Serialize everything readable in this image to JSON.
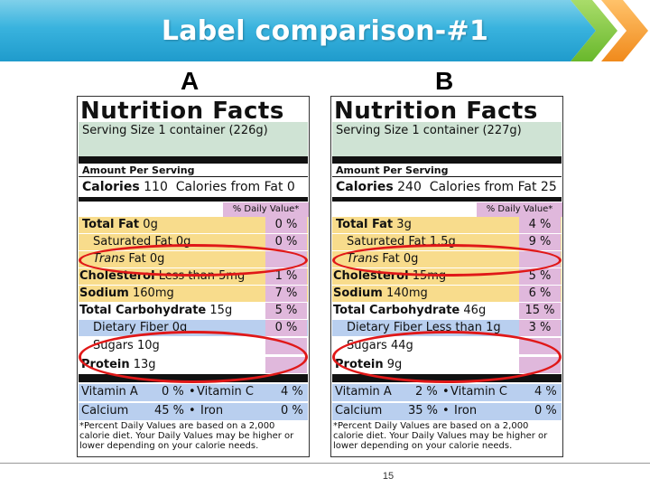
{
  "slide": {
    "title": "Label comparison-#1",
    "page_number": "15"
  },
  "labels": [
    {
      "letter": "A",
      "heading": "Nutrition Facts",
      "serving": "Serving Size 1 container (226g)",
      "amount_per_serving": "Amount Per Serving",
      "calories_label": "Calories",
      "calories_value": "110",
      "calories_from_fat": "Calories from Fat",
      "calories_from_fat_value": "0",
      "dv_header": "% Daily Value*",
      "nutrients": [
        {
          "name": "Total Fat",
          "amount": "0g",
          "dv": "0 %"
        },
        {
          "name": "Saturated Fat",
          "amount": "0g",
          "dv": "0 %"
        },
        {
          "name": "Trans",
          "name2": "Fat",
          "amount": "0g",
          "dv": ""
        },
        {
          "name": "Cholesterol",
          "amount": "Less than 5mg",
          "dv": "1 %"
        },
        {
          "name": "Sodium",
          "amount": "160mg",
          "dv": "7 %"
        },
        {
          "name": "Total Carbohydrate",
          "amount": "15g",
          "dv": "5 %"
        },
        {
          "name": "Dietary Fiber",
          "amount": "0g",
          "dv": "0 %"
        },
        {
          "name": "Sugars",
          "amount": "10g",
          "dv": ""
        },
        {
          "name": "Protein",
          "amount": "13g",
          "dv": ""
        }
      ],
      "vitamin_a": "Vitamin A",
      "vitamin_a_dv": "0 %",
      "vitamin_c": "Vitamin C",
      "vitamin_c_dv": "4 %",
      "calcium": "Calcium",
      "calcium_dv": "45 %",
      "iron": "Iron",
      "iron_dv": "0 %",
      "footnote": "*Percent Daily Values are based on a 2,000 calorie diet. Your Daily Values may be higher or lower depending on your calorie needs."
    },
    {
      "letter": "B",
      "heading": "Nutrition Facts",
      "serving": "Serving Size 1 container (227g)",
      "amount_per_serving": "Amount Per Serving",
      "calories_label": "Calories",
      "calories_value": "240",
      "calories_from_fat": "Calories from Fat",
      "calories_from_fat_value": "25",
      "dv_header": "% Daily Value*",
      "nutrients": [
        {
          "name": "Total Fat",
          "amount": "3g",
          "dv": "4 %"
        },
        {
          "name": "Saturated Fat",
          "amount": "1.5g",
          "dv": "9 %"
        },
        {
          "name": "Trans",
          "name2": "Fat",
          "amount": "0g",
          "dv": ""
        },
        {
          "name": "Cholesterol",
          "amount": "15mg",
          "dv": "5 %"
        },
        {
          "name": "Sodium",
          "amount": "140mg",
          "dv": "6 %"
        },
        {
          "name": "Total Carbohydrate",
          "amount": "46g",
          "dv": "15 %"
        },
        {
          "name": "Dietary Fiber",
          "amount": "Less than 1g",
          "dv": "3 %"
        },
        {
          "name": "Sugars",
          "amount": "44g",
          "dv": ""
        },
        {
          "name": "Protein",
          "amount": "9g",
          "dv": ""
        }
      ],
      "vitamin_a": "Vitamin A",
      "vitamin_a_dv": "2 %",
      "vitamin_c": "Vitamin C",
      "vitamin_c_dv": "4 %",
      "calcium": "Calcium",
      "calcium_dv": "35 %",
      "iron": "Iron",
      "iron_dv": "0 %",
      "footnote": "*Percent Daily Values are based on a 2,000 calorie diet. Your Daily Values may be higher or lower depending on your calorie needs."
    }
  ],
  "colors": {
    "banner": "#39b3de",
    "highlight_circle": "#e01818",
    "fat_rows": "#f8dc8c",
    "carb_rows": "#b9cfef",
    "dv_column": "#e0b8dc"
  }
}
